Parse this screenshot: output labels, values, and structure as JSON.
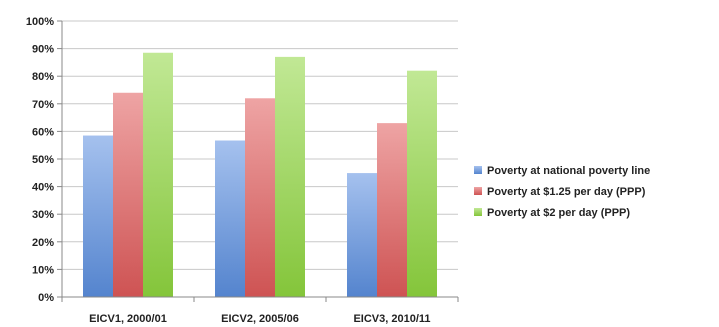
{
  "chart_data": {
    "type": "bar",
    "categories": [
      "EICV1, 2000/01",
      "EICV2, 2005/06",
      "EICV3, 2010/11"
    ],
    "series": [
      {
        "name": "Poverty at national poverty line",
        "values": [
          58.5,
          56.7,
          44.9
        ],
        "color": "#5b8fe0"
      },
      {
        "name": "Poverty at $1.25 per day (PPP)",
        "values": [
          74.0,
          72.0,
          63.0
        ],
        "color": "#e05a5a"
      },
      {
        "name": "Poverty at $2 per day (PPP)",
        "values": [
          88.5,
          87.0,
          82.0
        ],
        "color": "#8fd63f"
      }
    ],
    "ylim": [
      0,
      100
    ],
    "yticks": [
      0,
      10,
      20,
      30,
      40,
      50,
      60,
      70,
      80,
      90,
      100
    ],
    "ytick_format": "percent",
    "grid": true,
    "legend_position": "right",
    "title": "",
    "xlabel": "",
    "ylabel": ""
  }
}
